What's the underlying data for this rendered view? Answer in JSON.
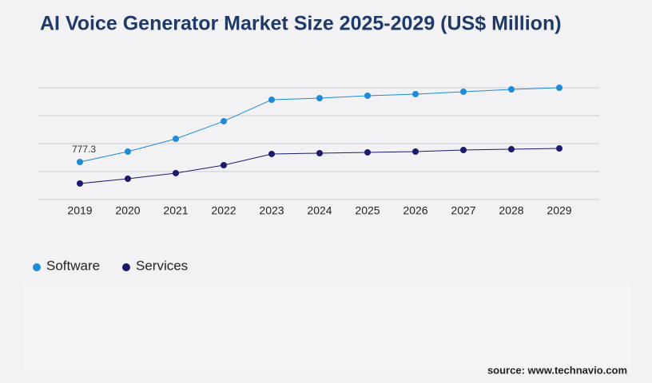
{
  "chart_data": {
    "type": "line",
    "title": "AI Voice Generator Market Size 2025-2029 (US$ Million)",
    "categories": [
      "2019",
      "2020",
      "2021",
      "2022",
      "2023",
      "2024",
      "2025",
      "2026",
      "2027",
      "2028",
      "2029"
    ],
    "series": [
      {
        "name": "Software",
        "color": "#1f8ad6",
        "values": [
          777.3,
          992,
          1257,
          1621,
          2067,
          2100,
          2150,
          2183,
          2233,
          2282,
          2315
        ],
        "value_labels": [
          "777.3",
          null,
          null,
          null,
          null,
          null,
          null,
          null,
          null,
          null,
          null
        ]
      },
      {
        "name": "Services",
        "color": "#1c1a6e",
        "values": [
          331,
          430,
          546,
          711,
          943,
          959,
          976,
          992,
          1025,
          1042,
          1058
        ]
      }
    ],
    "ylim": [
      0,
      2315
    ],
    "source": "source: www.technavio.com"
  }
}
